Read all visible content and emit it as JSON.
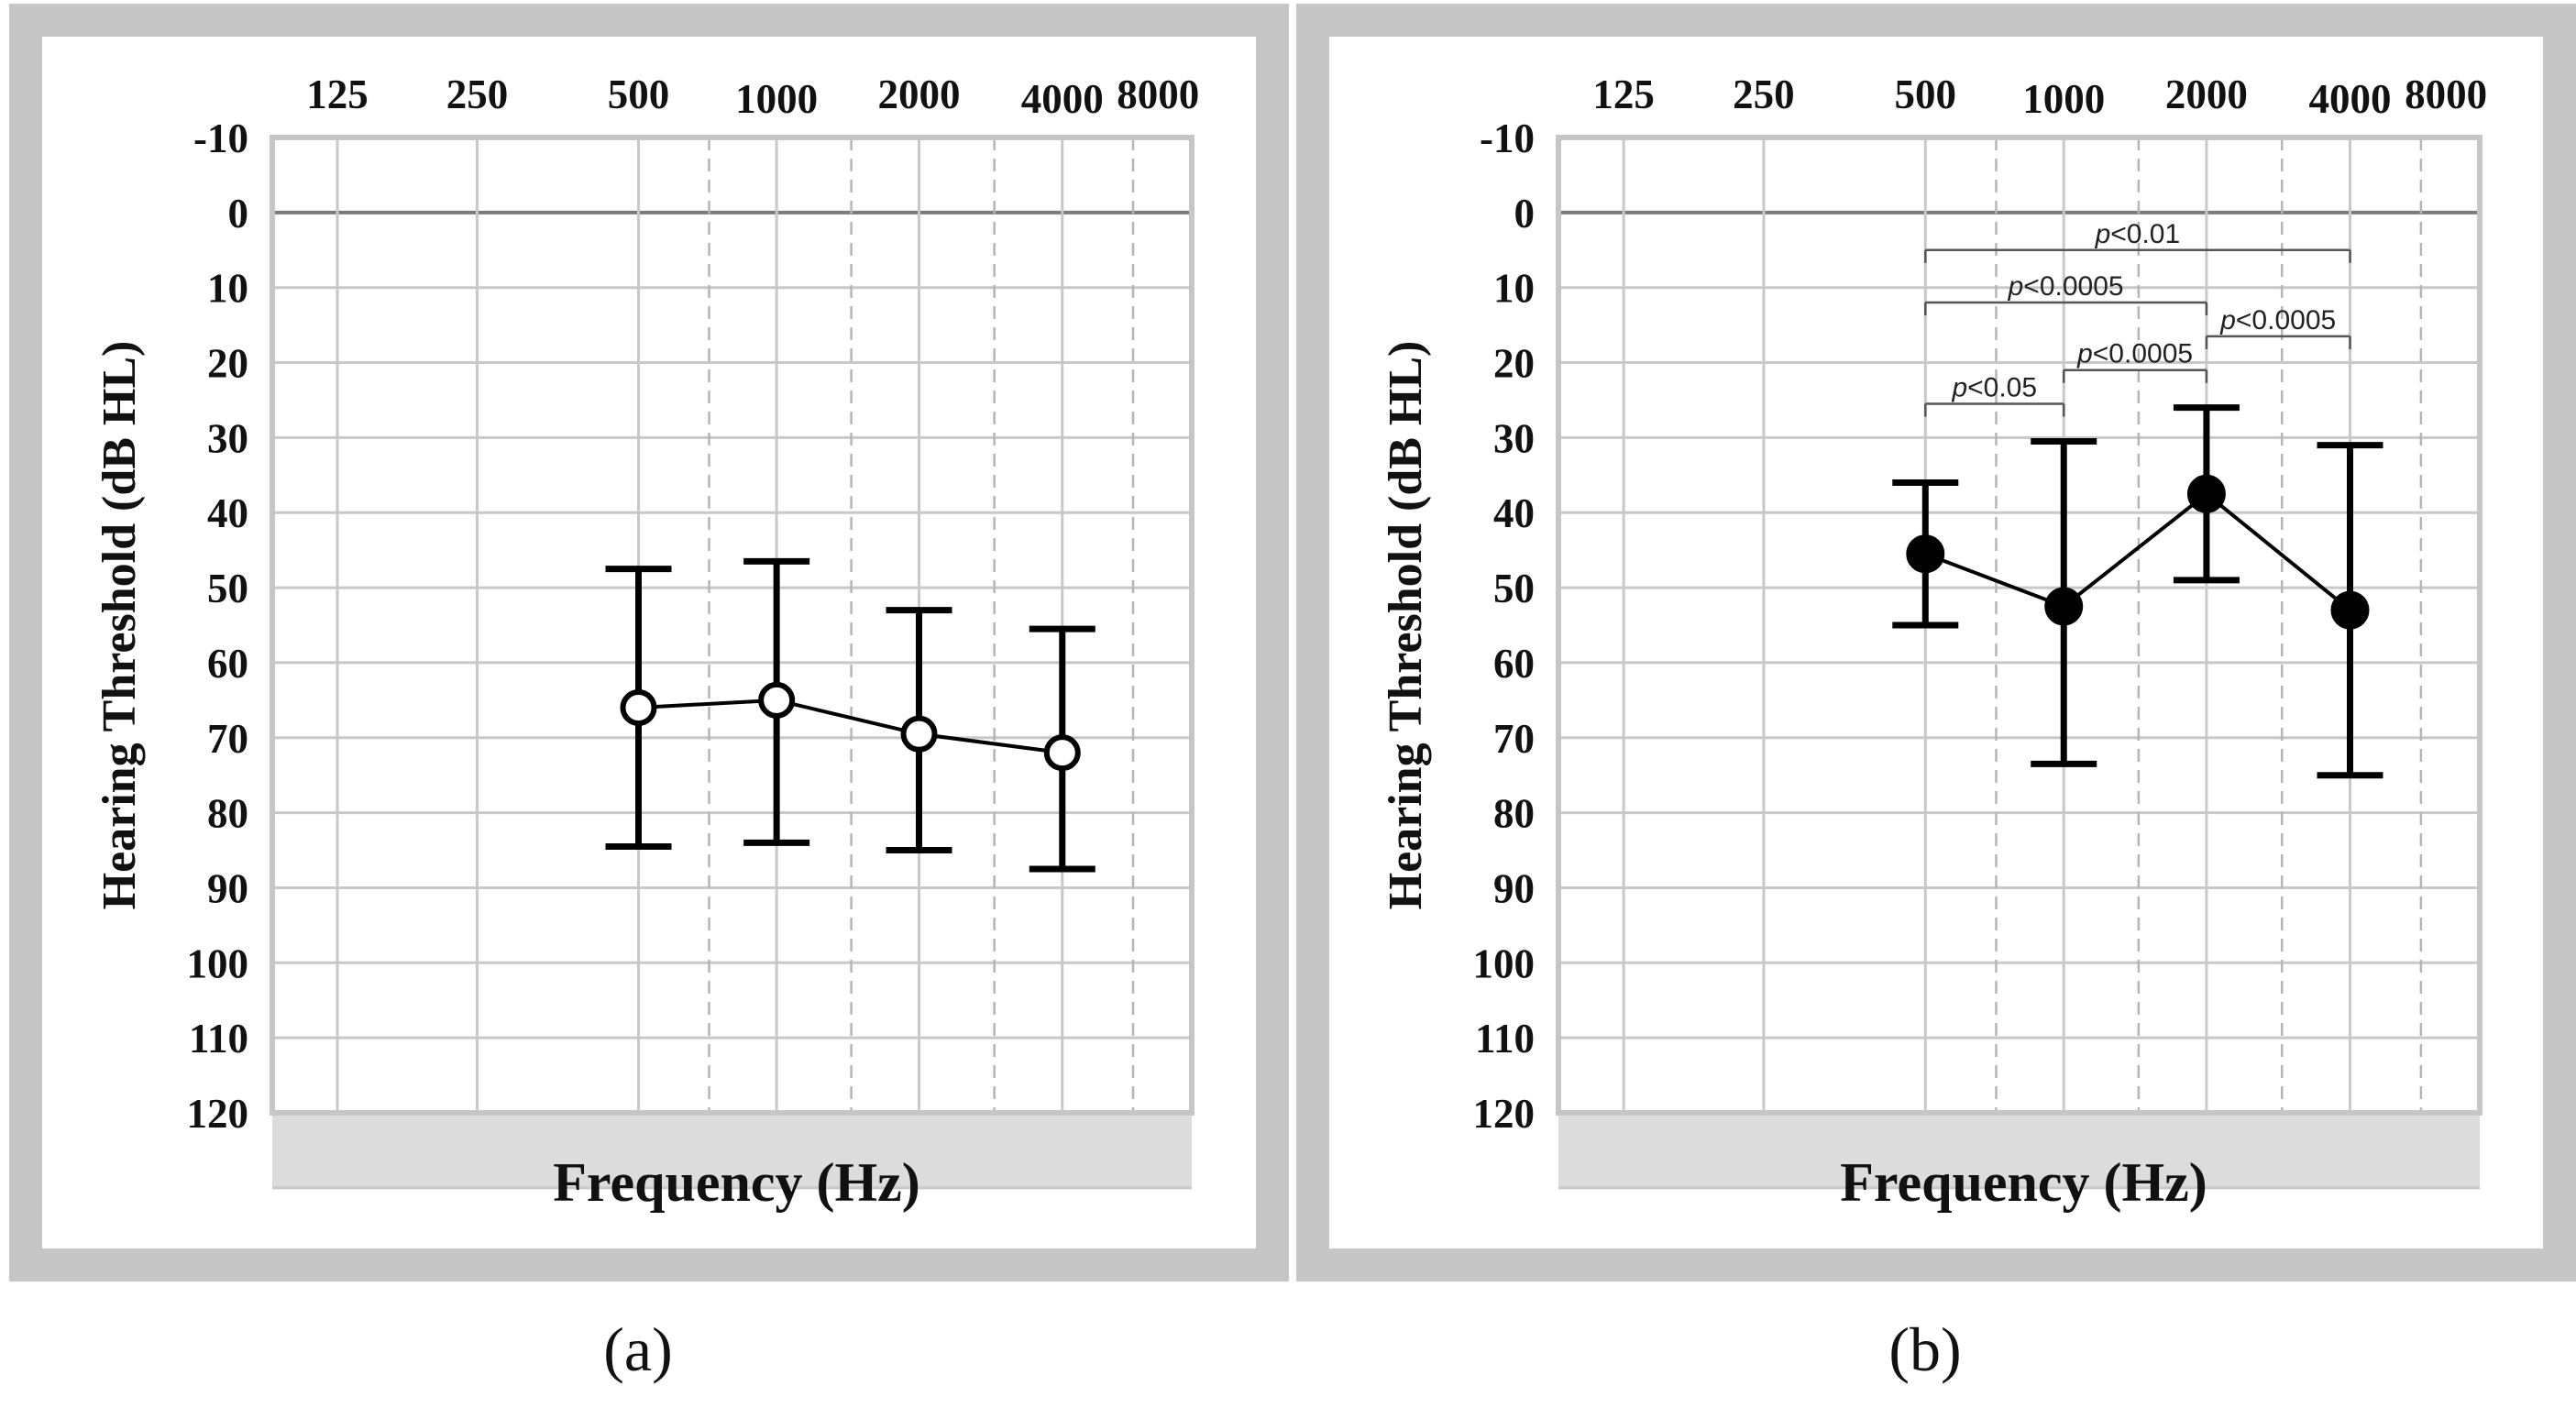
{
  "colors": {
    "frame": "#c6c6c6",
    "grid_major": "#c8c8c8",
    "grid_dashed": "#b5b5b5",
    "reference_line": "#7a7a7a",
    "shade": "#dcdcdc",
    "data": "#000000",
    "bracket": "#555555"
  },
  "chart_data": [
    {
      "type": "line",
      "panel_label": "(a)",
      "title": "",
      "xlabel": "Frequency (Hz)",
      "ylabel": "Hearing Threshold (dB HL)",
      "x_ticks": [
        "125",
        "250",
        "500",
        "1000",
        "2000",
        "4000",
        "8000"
      ],
      "y_ticks": [
        "-10",
        "0",
        "10",
        "20",
        "30",
        "40",
        "50",
        "60",
        "70",
        "80",
        "90",
        "100",
        "110",
        "120"
      ],
      "ylim": [
        -10,
        120
      ],
      "y_inverted": true,
      "marker": "open-circle",
      "x": [
        "500",
        "1000",
        "2000",
        "4000"
      ],
      "values": [
        66,
        65,
        69.5,
        72
      ],
      "error_low": [
        47.5,
        46.5,
        53,
        55.5
      ],
      "error_high": [
        84.5,
        84,
        85,
        87.5
      ],
      "shaded_region": [
        120,
        130
      ],
      "significance": []
    },
    {
      "type": "line",
      "panel_label": "(b)",
      "title": "",
      "xlabel": "Frequency (Hz)",
      "ylabel": "Hearing Threshold (dB HL)",
      "x_ticks": [
        "125",
        "250",
        "500",
        "1000",
        "2000",
        "4000",
        "8000"
      ],
      "y_ticks": [
        "-10",
        "0",
        "10",
        "20",
        "30",
        "40",
        "50",
        "60",
        "70",
        "80",
        "90",
        "100",
        "110",
        "120"
      ],
      "ylim": [
        -10,
        120
      ],
      "y_inverted": true,
      "marker": "filled-circle",
      "x": [
        "500",
        "1000",
        "2000",
        "4000"
      ],
      "values": [
        45.5,
        52.5,
        37.5,
        53
      ],
      "error_low": [
        36,
        30.5,
        26,
        31
      ],
      "error_high": [
        55,
        73.5,
        49,
        75
      ],
      "shaded_region": [
        120,
        130
      ],
      "significance": [
        {
          "from": "500",
          "to": "4000",
          "label": "p<0.01",
          "level": 5
        },
        {
          "from": "500",
          "to": "2000",
          "label": "p<0.0005",
          "level": 12
        },
        {
          "from": "2000",
          "to": "4000",
          "label": "p<0.0005",
          "level": 16.5
        },
        {
          "from": "1000",
          "to": "2000",
          "label": "p<0.0005",
          "level": 21
        },
        {
          "from": "500",
          "to": "1000",
          "label": "p<0.05",
          "level": 25.5
        }
      ]
    }
  ]
}
